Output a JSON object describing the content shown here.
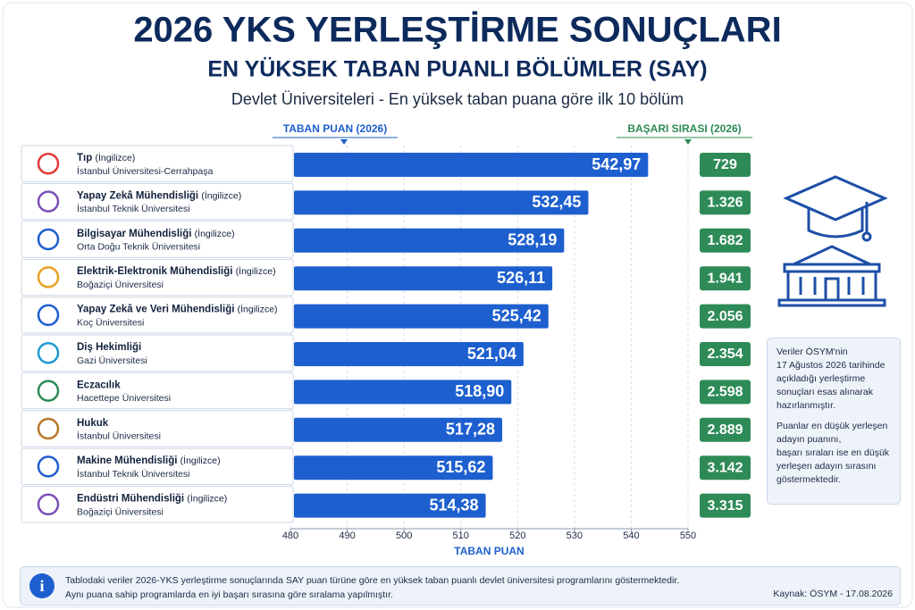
{
  "chart_data": {
    "type": "bar",
    "orientation": "horizontal",
    "title": "2026 YKS YERLEŞTİRME SONUÇLARI",
    "subtitle": "EN YÜKSEK TABAN PUANLI BÖLÜMLER (SAY)",
    "description": "Devlet Üniversiteleri - En yüksek taban puana göre ilk 10 bölüm",
    "value_header": "TABAN PUAN (2026)",
    "rank_header": "BAŞARI SIRASI (2026)",
    "x_label": "TABAN PUAN",
    "categories": [
      "Tıp",
      "Yapay Zekâ Mühendisliği",
      "Bilgisayar Mühendisliği",
      "Elektrik-Elektronik Mühendisliği",
      "Yapay Zekâ ve Veri Mühendisliği",
      "Diş Hekimliği",
      "Eczacılık",
      "Hukuk",
      "Makine Mühendisliği",
      "Endüstri Mühendisliği"
    ],
    "category_notes": [
      "(İngilizce)",
      "(İngilizce)",
      "(İngilizce)",
      "(İngilizce)",
      "(İngilizce)",
      null,
      null,
      null,
      "(İngilizce)",
      "(İngilizce)"
    ],
    "universities": [
      "İstanbul Üniversitesi-Cerrahpaşa",
      "İstanbul Teknik Üniversitesi",
      "Orta Doğu Teknik Üniversitesi",
      "Boğaziçi Üniversitesi",
      "Koç Üniversitesi",
      "Gazi Üniversitesi",
      "Hacettepe Üniversitesi",
      "İstanbul Üniversitesi",
      "İstanbul Teknik Üniversitesi",
      "Boğaziçi Üniversitesi"
    ],
    "values": [
      542.97,
      532.45,
      528.19,
      526.11,
      525.42,
      521.04,
      518.9,
      517.28,
      515.62,
      514.38
    ],
    "value_labels": [
      "542,97",
      "532,45",
      "528,19",
      "526,11",
      "525,42",
      "521,04",
      "518,90",
      "517,28",
      "515,62",
      "514,38"
    ],
    "color": "#1d5fcf",
    "ranks": {
      "values": [
        729,
        1326,
        1682,
        1941,
        2056,
        2354,
        2598,
        2889,
        3142,
        3315
      ],
      "value_labels": [
        "729",
        "1.326",
        "1.682",
        "1.941",
        "2.056",
        "2.354",
        "2.598",
        "2.889",
        "3.142",
        "3.315"
      ],
      "color": "#2e8b57"
    },
    "xlim": [
      480,
      550
    ],
    "xticks": [
      480,
      490,
      500,
      510,
      520,
      530,
      540,
      550
    ],
    "grid": true,
    "note": [
      [
        "Veriler ÖSYM'nin",
        "17 Ağustos 2026 tarihinde",
        "açıkladığı yerleştirme",
        "sonuçları esas alınarak",
        "hazırlanmıştır."
      ],
      [
        "Puanlar en düşük yerleşen",
        "adayın puanını,",
        "başarı sıraları ise en düşük",
        "yerleşen adayın sırasını",
        "göstermektedir."
      ]
    ],
    "footnote": [
      "Tablodaki veriler 2026-YKS yerleştirme sonuçlarında SAY puan türüne göre en yüksek taban puanlı devlet üniversitesi programlarını göstermektedir.",
      "Aynı puana sahip programlarda en iyi başarı sırasına göre sıralama yapılmıştır."
    ],
    "source": "Kaynak: ÖSYM - 17.08.2026"
  }
}
